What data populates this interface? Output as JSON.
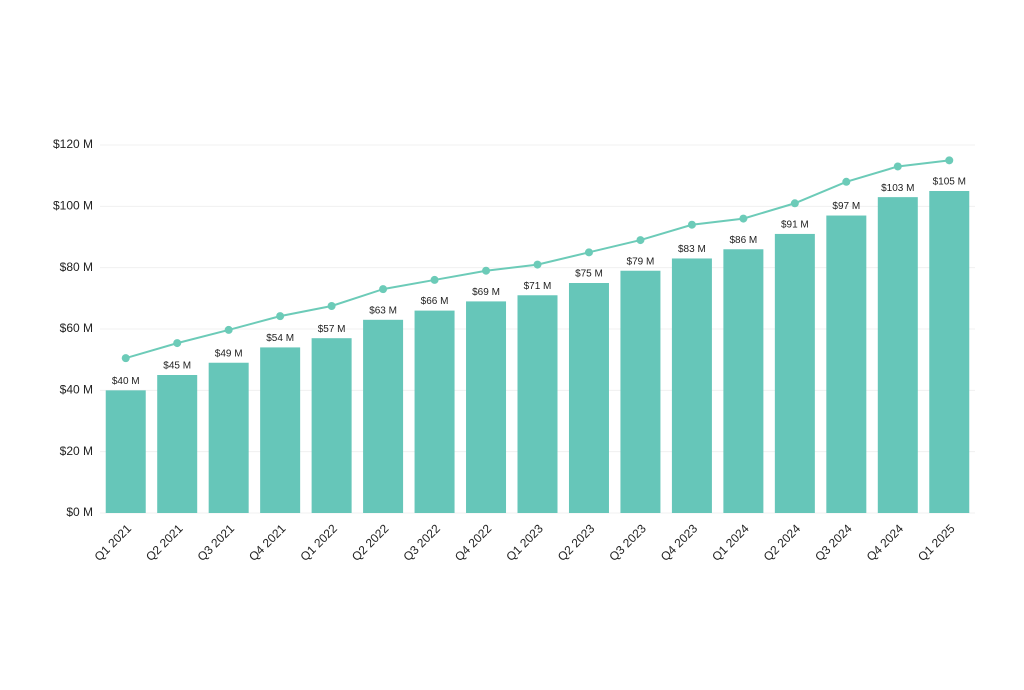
{
  "chart_data": {
    "type": "combo",
    "categories": [
      "Q1 2021",
      "Q2 2021",
      "Q3 2021",
      "Q4 2021",
      "Q1 2022",
      "Q2 2022",
      "Q3 2022",
      "Q4 2022",
      "Q1 2023",
      "Q2 2023",
      "Q3 2023",
      "Q4 2023",
      "Q1 2024",
      "Q2 2024",
      "Q3 2024",
      "Q4 2024",
      "Q1 2025"
    ],
    "series": [
      {
        "type": "bar",
        "color": "#66c6b9",
        "values": [
          40,
          45,
          49,
          54,
          57,
          63,
          66,
          69,
          71,
          75,
          79,
          83,
          86,
          91,
          97,
          103,
          105
        ],
        "value_labels": [
          "$40 M",
          "$45 M",
          "$49 M",
          "$54 M",
          "$57 M",
          "$63 M",
          "$66 M",
          "$69 M",
          "$71 M",
          "$75 M",
          "$79 M",
          "$83 M",
          "$86 M",
          "$91 M",
          "$97 M",
          "$103 M",
          "$105 M"
        ]
      },
      {
        "type": "line",
        "color": "#6ccbb8",
        "values": [
          50.5,
          55.4,
          59.7,
          64.2,
          67.5,
          73,
          76,
          79,
          81,
          85,
          89,
          94,
          96,
          101,
          108,
          113,
          115
        ]
      }
    ],
    "ylim": [
      0,
      120
    ],
    "yticks": [
      {
        "value": 0,
        "label": "$0 M"
      },
      {
        "value": 20,
        "label": "$20 M"
      },
      {
        "value": 40,
        "label": "$40 M"
      },
      {
        "value": 60,
        "label": "$60 M"
      },
      {
        "value": 80,
        "label": "$80 M"
      },
      {
        "value": 100,
        "label": "$100 M"
      },
      {
        "value": 120,
        "label": "$120 M"
      }
    ],
    "grid": true
  }
}
